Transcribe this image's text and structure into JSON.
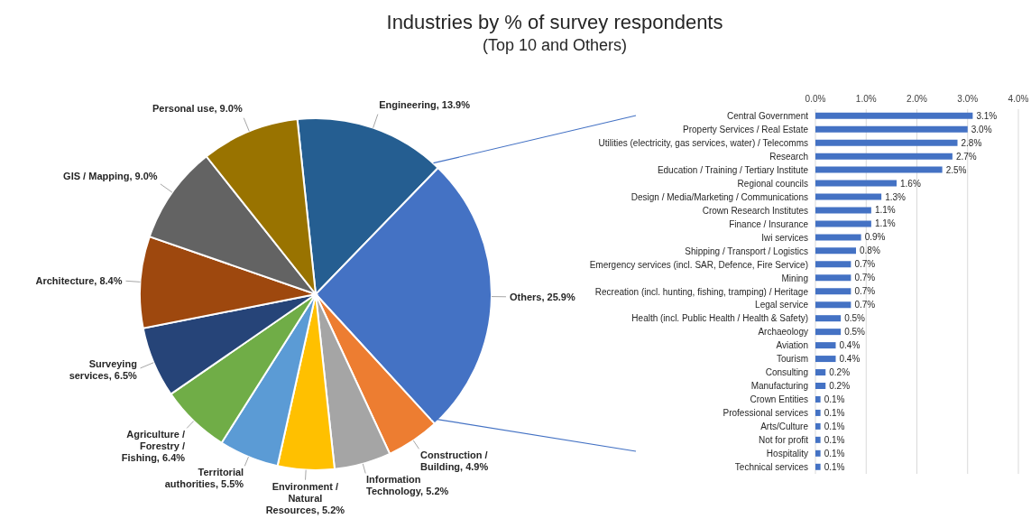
{
  "chart_data": [
    {
      "type": "pie",
      "title": "Industries by % of survey respondents",
      "subtitle": "(Top 10 and Others)",
      "categories": [
        "Engineering",
        "Others",
        "Construction / Building",
        "Information Technology",
        "Environment / Natural Resources",
        "Territorial authorities",
        "Agriculture / Forestry / Fishing",
        "Surveying services",
        "Architecture",
        "GIS / Mapping",
        "Personal use"
      ],
      "values": [
        13.9,
        25.9,
        4.9,
        5.2,
        5.2,
        5.5,
        6.4,
        6.5,
        8.4,
        9.0,
        9.0
      ],
      "value_labels": [
        "13.9%",
        "25.9%",
        "4.9%",
        "5.2%",
        "5.2%",
        "5.5%",
        "6.4%",
        "6.5%",
        "8.4%",
        "9.0%",
        "9.0%"
      ],
      "colors": [
        "#255e91",
        "#4472c4",
        "#ed7d31",
        "#a5a5a5",
        "#ffc000",
        "#5b9bd5",
        "#70ad47",
        "#264478",
        "#9e480e",
        "#636363",
        "#997300"
      ],
      "legend": false
    },
    {
      "type": "bar",
      "orientation": "horizontal",
      "color": "#4472c4",
      "categories": [
        "Central Government",
        "Property Services / Real Estate",
        "Utilities (electricity, gas services, water) / Telecomms",
        "Research",
        "Education / Training / Tertiary Institute",
        "Regional councils",
        "Design / Media/Marketing / Communications",
        "Crown Research Institutes",
        "Finance / Insurance",
        "Iwi services",
        "Shipping / Transport / Logistics",
        "Emergency services (incl. SAR, Defence, Fire Service)",
        "Mining",
        "Recreation (incl. hunting, fishing, tramping) / Heritage",
        "Legal service",
        "Health (incl. Public Health / Health & Safety)",
        "Archaeology",
        "Aviation",
        "Tourism",
        "Consulting",
        "Manufacturing",
        "Crown Entities",
        "Professional services",
        "Arts/Culture",
        "Not for profit",
        "Hospitality",
        "Technical services"
      ],
      "values": [
        3.1,
        3.0,
        2.8,
        2.7,
        2.5,
        1.6,
        1.3,
        1.1,
        1.1,
        0.9,
        0.8,
        0.7,
        0.7,
        0.7,
        0.7,
        0.5,
        0.5,
        0.4,
        0.4,
        0.2,
        0.2,
        0.1,
        0.1,
        0.1,
        0.1,
        0.1,
        0.1
      ],
      "value_labels": [
        "3.1%",
        "3.0%",
        "2.8%",
        "2.7%",
        "2.5%",
        "1.6%",
        "1.3%",
        "1.1%",
        "1.1%",
        "0.9%",
        "0.8%",
        "0.7%",
        "0.7%",
        "0.7%",
        "0.7%",
        "0.5%",
        "0.5%",
        "0.4%",
        "0.4%",
        "0.2%",
        "0.2%",
        "0.1%",
        "0.1%",
        "0.1%",
        "0.1%",
        "0.1%",
        "0.1%"
      ],
      "xlim": [
        0,
        4
      ],
      "xticks": [
        {
          "value": 0,
          "label": "0.0%"
        },
        {
          "value": 1,
          "label": "1.0%"
        },
        {
          "value": 2,
          "label": "2.0%"
        },
        {
          "value": 3,
          "label": "3.0%"
        },
        {
          "value": 4,
          "label": "4.0%"
        }
      ],
      "grid": "x",
      "legend": false
    }
  ]
}
